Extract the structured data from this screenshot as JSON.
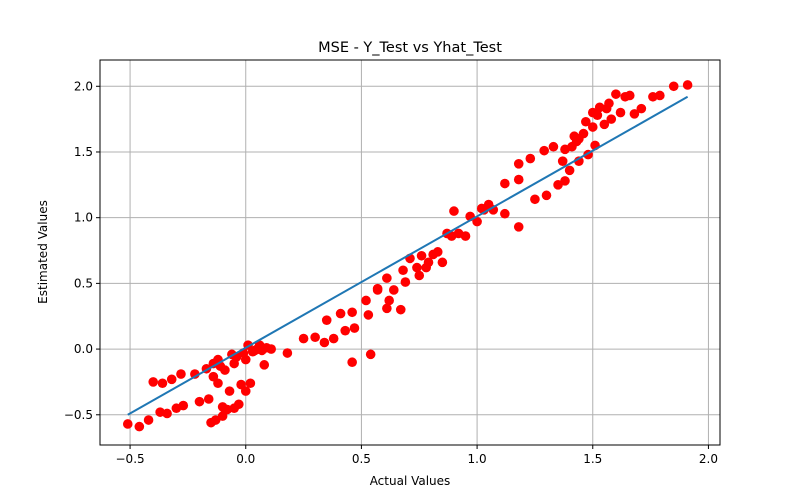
{
  "chart_data": {
    "type": "scatter",
    "title": "MSE - Y_Test vs Yhat_Test",
    "xlabel": "Actual Values",
    "ylabel": "Estimated Values",
    "xlim": [
      -0.63,
      2.05
    ],
    "ylim": [
      -0.73,
      2.2
    ],
    "xticks": [
      -0.5,
      0.0,
      0.5,
      1.0,
      1.5,
      2.0
    ],
    "xtick_labels": [
      "−0.5",
      "0.0",
      "0.5",
      "1.0",
      "1.5",
      "2.0"
    ],
    "yticks": [
      -0.5,
      0.0,
      0.5,
      1.0,
      1.5,
      2.0
    ],
    "ytick_labels": [
      "−0.5",
      "0.0",
      "0.5",
      "1.0",
      "1.5",
      "2.0"
    ],
    "grid": true,
    "colors": {
      "points": "#ff0000",
      "line": "#1f77b4",
      "grid": "#b0b0b0"
    },
    "series": [
      {
        "type": "scatter",
        "x": [
          -0.51,
          -0.46,
          -0.42,
          -0.4,
          -0.37,
          -0.36,
          -0.34,
          -0.32,
          -0.3,
          -0.28,
          -0.27,
          -0.22,
          -0.2,
          -0.17,
          -0.16,
          -0.15,
          -0.14,
          -0.14,
          -0.13,
          -0.12,
          -0.12,
          -0.11,
          -0.1,
          -0.1,
          -0.09,
          -0.08,
          -0.07,
          -0.06,
          -0.05,
          -0.05,
          -0.04,
          -0.03,
          -0.02,
          -0.01,
          0.0,
          0.0,
          0.01,
          0.02,
          0.03,
          0.04,
          0.05,
          0.06,
          0.07,
          0.08,
          0.09,
          0.11,
          0.18,
          0.25,
          0.3,
          0.34,
          0.35,
          0.38,
          0.41,
          0.43,
          0.46,
          0.46,
          0.47,
          0.52,
          0.53,
          0.54,
          0.57,
          0.57,
          0.61,
          0.61,
          0.62,
          0.64,
          0.67,
          0.68,
          0.69,
          0.71,
          0.74,
          0.75,
          0.76,
          0.78,
          0.79,
          0.81,
          0.83,
          0.85,
          0.87,
          0.89,
          0.9,
          0.92,
          0.95,
          0.97,
          1.0,
          1.02,
          1.03,
          1.05,
          1.07,
          1.12,
          1.12,
          1.18,
          1.18,
          1.18,
          1.23,
          1.25,
          1.29,
          1.3,
          1.33,
          1.35,
          1.37,
          1.38,
          1.38,
          1.4,
          1.41,
          1.42,
          1.43,
          1.44,
          1.44,
          1.46,
          1.47,
          1.48,
          1.5,
          1.5,
          1.51,
          1.52,
          1.53,
          1.55,
          1.56,
          1.57,
          1.58,
          1.6,
          1.62,
          1.64,
          1.66,
          1.68,
          1.71,
          1.76,
          1.79,
          1.85,
          1.91
        ],
        "y": [
          -0.57,
          -0.59,
          -0.54,
          -0.25,
          -0.48,
          -0.26,
          -0.49,
          -0.23,
          -0.45,
          -0.19,
          -0.43,
          -0.19,
          -0.4,
          -0.15,
          -0.38,
          -0.56,
          -0.11,
          -0.21,
          -0.54,
          -0.08,
          -0.26,
          -0.13,
          -0.51,
          -0.44,
          -0.16,
          -0.46,
          -0.32,
          -0.04,
          -0.11,
          -0.45,
          -0.06,
          -0.42,
          -0.27,
          -0.03,
          -0.32,
          -0.08,
          0.03,
          -0.26,
          -0.02,
          -0.01,
          0.0,
          0.03,
          -0.01,
          -0.12,
          0.01,
          0.0,
          -0.03,
          0.08,
          0.09,
          0.05,
          0.22,
          0.08,
          0.27,
          0.14,
          0.28,
          -0.1,
          0.16,
          0.37,
          0.26,
          -0.04,
          0.45,
          0.46,
          0.31,
          0.54,
          0.37,
          0.45,
          0.3,
          0.6,
          0.51,
          0.69,
          0.62,
          0.56,
          0.71,
          0.62,
          0.66,
          0.72,
          0.74,
          0.66,
          0.88,
          0.86,
          1.05,
          0.88,
          0.86,
          1.01,
          0.97,
          1.07,
          1.06,
          1.1,
          1.06,
          1.26,
          1.03,
          1.41,
          0.93,
          1.29,
          1.45,
          1.14,
          1.51,
          1.17,
          1.54,
          1.25,
          1.43,
          1.28,
          1.52,
          1.36,
          1.54,
          1.62,
          1.58,
          1.6,
          1.43,
          1.64,
          1.73,
          1.48,
          1.69,
          1.8,
          1.55,
          1.78,
          1.84,
          1.71,
          1.83,
          1.87,
          1.75,
          1.94,
          1.8,
          1.92,
          1.93,
          1.79,
          1.83,
          1.92,
          1.93,
          2.0,
          2.01
        ]
      },
      {
        "type": "line",
        "x": [
          -0.51,
          1.91
        ],
        "y": [
          -0.5,
          1.92
        ]
      }
    ]
  }
}
